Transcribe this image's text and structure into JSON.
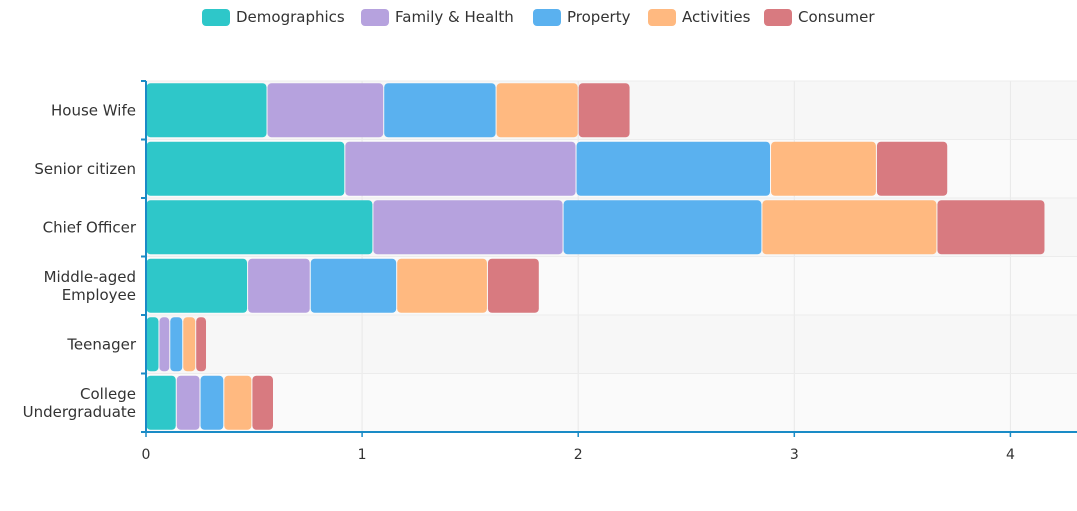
{
  "chart_data": {
    "type": "bar",
    "orientation": "horizontal",
    "stacked": true,
    "categories": [
      "House Wife",
      "Senior citizen",
      "Chief Officer",
      "Middle-aged\nEmployee",
      "Teenager",
      "College\nUndergraduate"
    ],
    "series": [
      {
        "name": "Demographics",
        "color": "#2ec7c9",
        "values": [
          0.56,
          0.92,
          1.05,
          0.47,
          0.06,
          0.14
        ]
      },
      {
        "name": "Family & Health",
        "color": "#b6a2de",
        "values": [
          0.54,
          1.07,
          0.88,
          0.29,
          0.05,
          0.11
        ]
      },
      {
        "name": "Property",
        "color": "#5ab1ef",
        "values": [
          0.52,
          0.9,
          0.92,
          0.4,
          0.06,
          0.11
        ]
      },
      {
        "name": "Activities",
        "color": "#ffb980",
        "values": [
          0.38,
          0.49,
          0.81,
          0.42,
          0.06,
          0.13
        ]
      },
      {
        "name": "Consumer",
        "color": "#d87a80",
        "values": [
          0.24,
          0.33,
          0.5,
          0.24,
          0.05,
          0.1
        ]
      }
    ],
    "xlim": [
      0,
      4.3
    ],
    "xticks": [
      0,
      1,
      2,
      3,
      4
    ],
    "grid": true,
    "legend_position": "top-center",
    "axis_color": "#1a8bc6"
  }
}
